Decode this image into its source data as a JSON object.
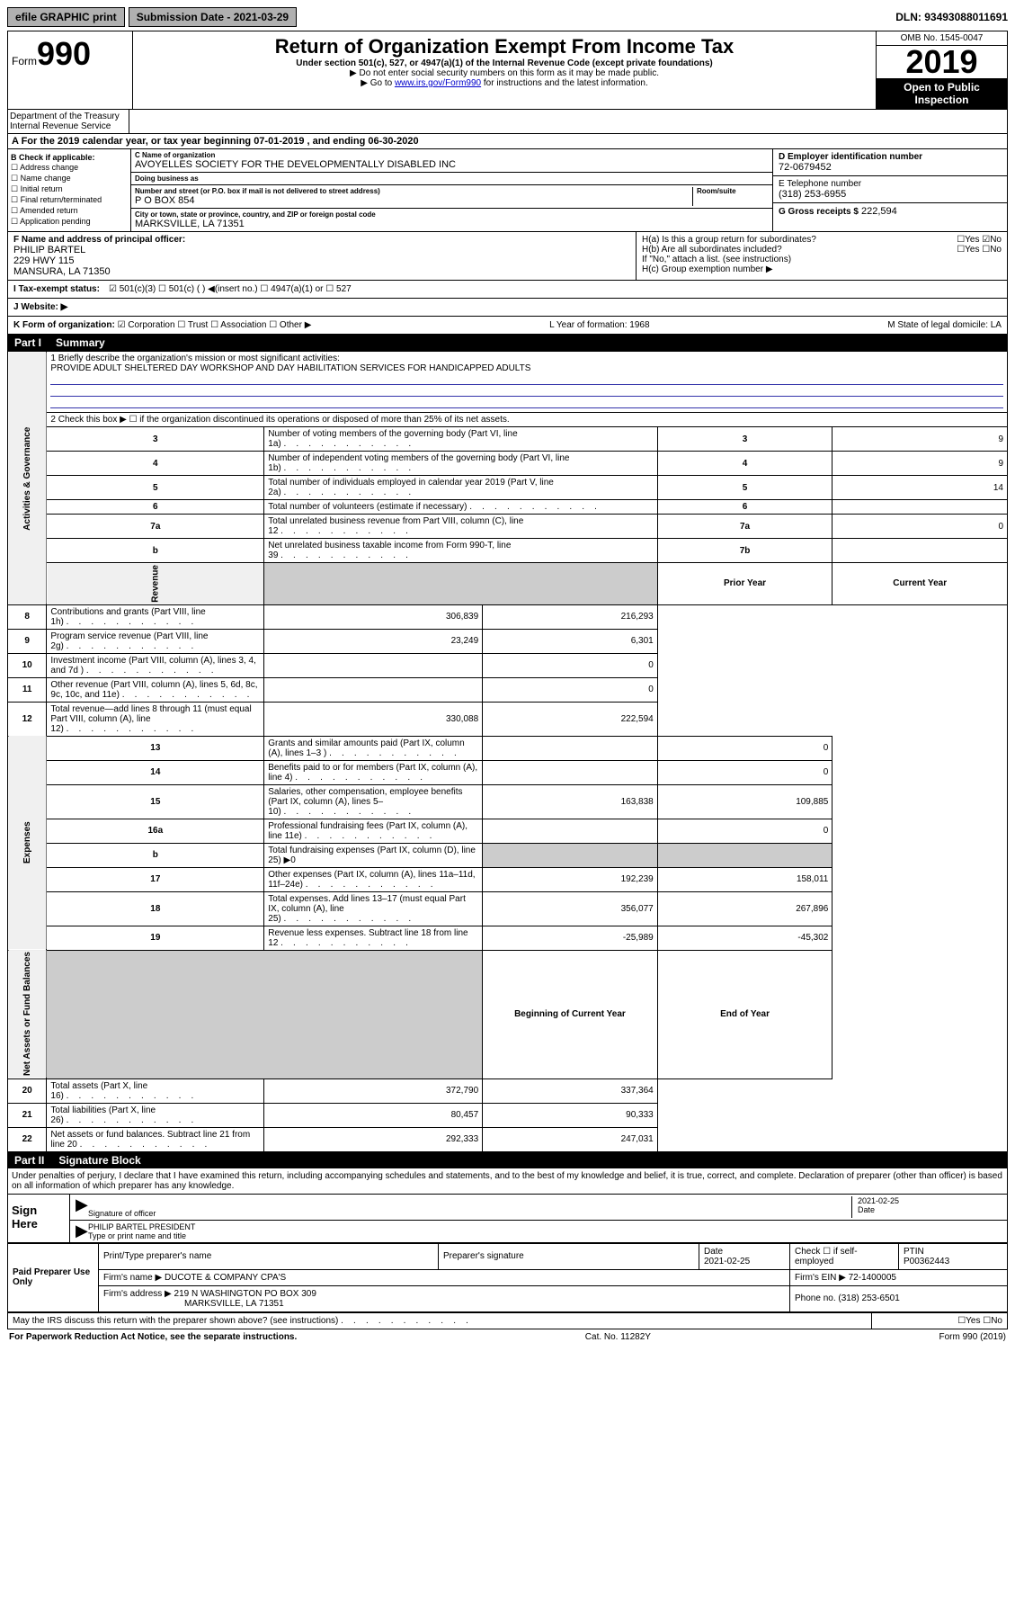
{
  "topbar": {
    "efile": "efile GRAPHIC print",
    "submission": "Submission Date - 2021-03-29",
    "dln": "DLN: 93493088011691"
  },
  "header": {
    "form_prefix": "Form",
    "form_num": "990",
    "title": "Return of Organization Exempt From Income Tax",
    "subtitle": "Under section 501(c), 527, or 4947(a)(1) of the Internal Revenue Code (except private foundations)",
    "instr1": "▶ Do not enter social security numbers on this form as it may be made public.",
    "instr2_pre": "▶ Go to ",
    "instr2_link": "www.irs.gov/Form990",
    "instr2_post": " for instructions and the latest information.",
    "omb": "OMB No. 1545-0047",
    "year": "2019",
    "open_public": "Open to Public Inspection",
    "dept": "Department of the Treasury Internal Revenue Service"
  },
  "periodA": "A For the 2019 calendar year, or tax year beginning 07-01-2019   , and ending 06-30-2020",
  "sectionB": {
    "label": "B Check if applicable:",
    "opts": [
      "☐ Address change",
      "☐ Name change",
      "☐ Initial return",
      "☐ Final return/terminated",
      "☐ Amended return",
      "☐ Application pending"
    ]
  },
  "sectionC": {
    "name_label": "C Name of organization",
    "name": "AVOYELLES SOCIETY FOR THE DEVELOPMENTALLY DISABLED INC",
    "dba_label": "Doing business as",
    "dba": "",
    "street_label": "Number and street (or P.O. box if mail is not delivered to street address)",
    "room_label": "Room/suite",
    "street": "P O BOX 854",
    "city_label": "City or town, state or province, country, and ZIP or foreign postal code",
    "city": "MARKSVILLE, LA  71351"
  },
  "sectionD": {
    "label": "D Employer identification number",
    "val": "72-0679452"
  },
  "sectionE": {
    "label": "E Telephone number",
    "val": "(318) 253-6955"
  },
  "sectionG": {
    "label": "G Gross receipts $",
    "val": "222,594"
  },
  "sectionF": {
    "label": "F  Name and address of principal officer:",
    "name": "PHILIP BARTEL",
    "addr1": "229 HWY 115",
    "addr2": "MANSURA, LA  71350"
  },
  "sectionH": {
    "a": "H(a)  Is this a group return for subordinates?",
    "a_ans": "☐Yes ☑No",
    "b": "H(b)  Are all subordinates included?",
    "b_ans": "☐Yes ☐No",
    "b_note": "If \"No,\" attach a list. (see instructions)",
    "c": "H(c)  Group exemption number ▶"
  },
  "sectionI": {
    "label": "I   Tax-exempt status:",
    "opts": "☑ 501(c)(3)   ☐ 501(c) (  ) ◀(insert no.)   ☐ 4947(a)(1) or  ☐ 527"
  },
  "sectionJ": {
    "label": "J   Website: ▶",
    "val": ""
  },
  "sectionK": {
    "label": "K Form of organization:",
    "opts": "☑ Corporation  ☐ Trust  ☐ Association  ☐ Other ▶",
    "L": "L Year of formation: 1968",
    "M": "M State of legal domicile: LA"
  },
  "part1": {
    "label": "Part I",
    "title": "Summary"
  },
  "summary": {
    "vert1": "Activities & Governance",
    "vert2": "Revenue",
    "vert3": "Expenses",
    "vert4": "Net Assets or Fund Balances",
    "l1_label": "1  Briefly describe the organization's mission or most significant activities:",
    "l1_text": "PROVIDE ADULT SHELTERED DAY WORKSHOP AND DAY HABILITATION SERVICES FOR HANDICAPPED ADULTS",
    "l2": "2   Check this box ▶ ☐  if the organization discontinued its operations or disposed of more than 25% of its net assets.",
    "rows_gov": [
      {
        "n": "3",
        "t": "Number of voting members of the governing body (Part VI, line 1a)",
        "b": "3",
        "v": "9"
      },
      {
        "n": "4",
        "t": "Number of independent voting members of the governing body (Part VI, line 1b)",
        "b": "4",
        "v": "9"
      },
      {
        "n": "5",
        "t": "Total number of individuals employed in calendar year 2019 (Part V, line 2a)",
        "b": "5",
        "v": "14"
      },
      {
        "n": "6",
        "t": "Total number of volunteers (estimate if necessary)",
        "b": "6",
        "v": ""
      },
      {
        "n": "7a",
        "t": "Total unrelated business revenue from Part VIII, column (C), line 12",
        "b": "7a",
        "v": "0"
      },
      {
        "n": "b",
        "t": "Net unrelated business taxable income from Form 990-T, line 39",
        "b": "7b",
        "v": ""
      }
    ],
    "hdr_prior": "Prior Year",
    "hdr_current": "Current Year",
    "rows_rev": [
      {
        "n": "8",
        "t": "Contributions and grants (Part VIII, line 1h)",
        "p": "306,839",
        "c": "216,293"
      },
      {
        "n": "9",
        "t": "Program service revenue (Part VIII, line 2g)",
        "p": "23,249",
        "c": "6,301"
      },
      {
        "n": "10",
        "t": "Investment income (Part VIII, column (A), lines 3, 4, and 7d )",
        "p": "",
        "c": "0"
      },
      {
        "n": "11",
        "t": "Other revenue (Part VIII, column (A), lines 5, 6d, 8c, 9c, 10c, and 11e)",
        "p": "",
        "c": "0"
      },
      {
        "n": "12",
        "t": "Total revenue—add lines 8 through 11 (must equal Part VIII, column (A), line 12)",
        "p": "330,088",
        "c": "222,594"
      }
    ],
    "rows_exp": [
      {
        "n": "13",
        "t": "Grants and similar amounts paid (Part IX, column (A), lines 1–3 )",
        "p": "",
        "c": "0"
      },
      {
        "n": "14",
        "t": "Benefits paid to or for members (Part IX, column (A), line 4)",
        "p": "",
        "c": "0"
      },
      {
        "n": "15",
        "t": "Salaries, other compensation, employee benefits (Part IX, column (A), lines 5–10)",
        "p": "163,838",
        "c": "109,885"
      },
      {
        "n": "16a",
        "t": "Professional fundraising fees (Part IX, column (A), line 11e)",
        "p": "",
        "c": "0"
      },
      {
        "n": "b",
        "t": "Total fundraising expenses (Part IX, column (D), line 25) ▶0",
        "p": "—",
        "c": "—"
      },
      {
        "n": "17",
        "t": "Other expenses (Part IX, column (A), lines 11a–11d, 11f–24e)",
        "p": "192,239",
        "c": "158,011"
      },
      {
        "n": "18",
        "t": "Total expenses. Add lines 13–17 (must equal Part IX, column (A), line 25)",
        "p": "356,077",
        "c": "267,896"
      },
      {
        "n": "19",
        "t": "Revenue less expenses. Subtract line 18 from line 12",
        "p": "-25,989",
        "c": "-45,302"
      }
    ],
    "hdr_boy": "Beginning of Current Year",
    "hdr_eoy": "End of Year",
    "rows_net": [
      {
        "n": "20",
        "t": "Total assets (Part X, line 16)",
        "p": "372,790",
        "c": "337,364"
      },
      {
        "n": "21",
        "t": "Total liabilities (Part X, line 26)",
        "p": "80,457",
        "c": "90,333"
      },
      {
        "n": "22",
        "t": "Net assets or fund balances. Subtract line 21 from line 20",
        "p": "292,333",
        "c": "247,031"
      }
    ]
  },
  "part2": {
    "label": "Part II",
    "title": "Signature Block"
  },
  "declare": "Under penalties of perjury, I declare that I have examined this return, including accompanying schedules and statements, and to the best of my knowledge and belief, it is true, correct, and complete. Declaration of preparer (other than officer) is based on all information of which preparer has any knowledge.",
  "sign": {
    "here": "Sign Here",
    "sig_label": "Signature of officer",
    "date": "2021-02-25",
    "date_label": "Date",
    "name": "PHILIP BARTEL PRESIDENT",
    "name_label": "Type or print name and title"
  },
  "paid": {
    "left": "Paid Preparer Use Only",
    "h1": "Print/Type preparer's name",
    "h2": "Preparer's signature",
    "h3": "Date",
    "h3v": "2021-02-25",
    "h4": "Check ☐ if self-employed",
    "h5": "PTIN",
    "h5v": "P00362443",
    "firm_label": "Firm's name    ▶",
    "firm": "DUCOTE & COMPANY CPA'S",
    "ein_label": "Firm's EIN ▶",
    "ein": "72-1400005",
    "addr_label": "Firm's address ▶",
    "addr": "219 N WASHINGTON PO BOX 309",
    "addr2": "MARKSVILLE, LA  71351",
    "phone_label": "Phone no.",
    "phone": "(318) 253-6501"
  },
  "discuss": {
    "q": "May the IRS discuss this return with the preparer shown above? (see instructions)",
    "ans": "☐Yes  ☐No"
  },
  "footer": {
    "left": "For Paperwork Reduction Act Notice, see the separate instructions.",
    "mid": "Cat. No. 11282Y",
    "right": "Form 990 (2019)"
  }
}
